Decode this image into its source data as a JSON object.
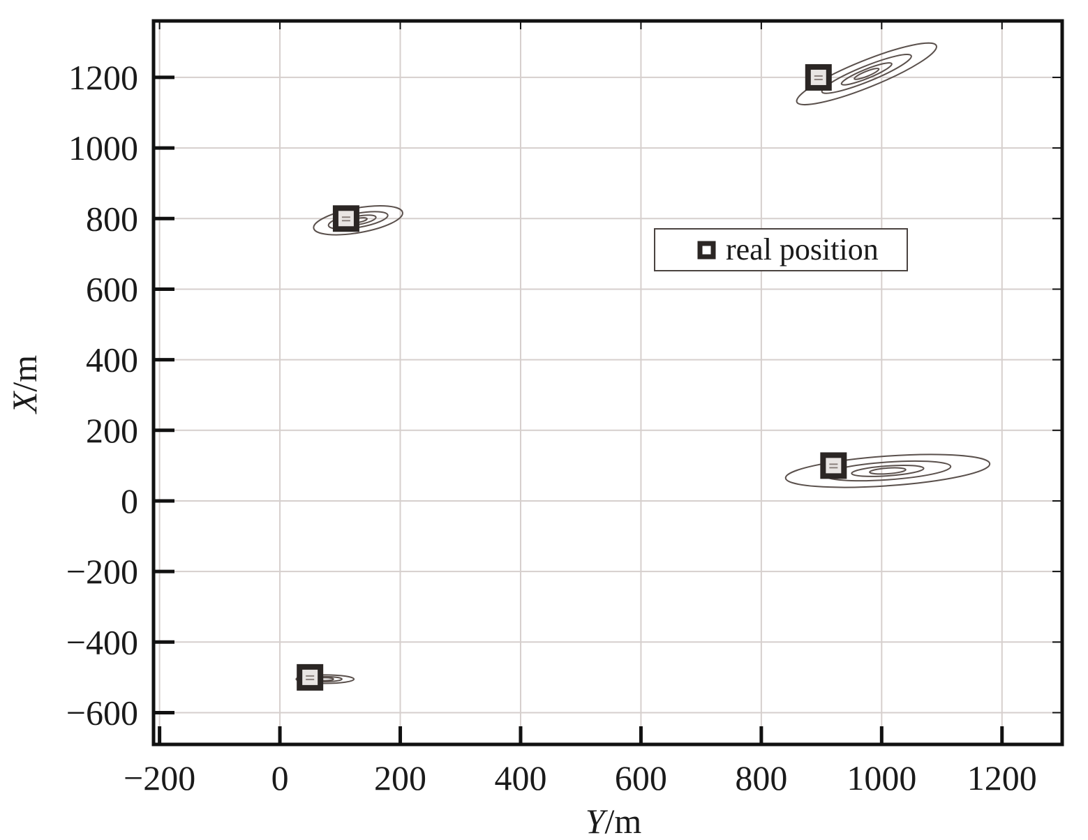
{
  "chart_data": {
    "type": "scatter",
    "xlabel": {
      "var": "Y",
      "unit": "/m"
    },
    "ylabel": {
      "var": "X",
      "unit": "/m"
    },
    "xlim": [
      -210,
      1300
    ],
    "ylim": [
      -690,
      1360
    ],
    "xticks": [
      -200,
      0,
      200,
      400,
      600,
      800,
      1000,
      1200
    ],
    "yticks": [
      -600,
      -400,
      -200,
      0,
      200,
      400,
      600,
      800,
      1000,
      1200
    ],
    "xtick_labels": [
      "−200",
      "0",
      "200",
      "400",
      "600",
      "800",
      "1000",
      "1200"
    ],
    "ytick_labels": [
      "−600",
      "−400",
      "−200",
      "0",
      "200",
      "400",
      "600",
      "800",
      "1000",
      "1200"
    ],
    "grid": true,
    "legend": {
      "position": "upper-right-center",
      "entries": [
        "real position"
      ]
    },
    "series": [
      {
        "name": "real position",
        "marker": "square",
        "x": [
          50,
          110,
          895,
          920
        ],
        "y": [
          -500,
          800,
          1200,
          100
        ]
      }
    ],
    "contours": [
      {
        "center": [
          75,
          -505
        ],
        "semi_axes": [
          [
            48,
            12
          ],
          [
            28,
            7
          ],
          [
            14,
            4
          ]
        ],
        "angle_deg": 0
      },
      {
        "center": [
          130,
          795
        ],
        "semi_axes": [
          [
            75,
            35
          ],
          [
            50,
            20
          ],
          [
            30,
            12
          ],
          [
            15,
            6
          ]
        ],
        "angle_deg": 10
      },
      {
        "center": [
          975,
          1210
        ],
        "semi_axes": [
          [
            125,
            38
          ],
          [
            80,
            22
          ],
          [
            45,
            13
          ],
          [
            22,
            7
          ]
        ],
        "angle_deg": 22
      },
      {
        "center": [
          1010,
          85
        ],
        "semi_axes": [
          [
            170,
            42
          ],
          [
            105,
            25
          ],
          [
            60,
            14
          ],
          [
            30,
            8
          ]
        ],
        "angle_deg": 4
      }
    ],
    "colors": {
      "marker": "#2b2624",
      "contour": "#5a504c",
      "grid": "#d6cfcd",
      "frame": "#111111"
    }
  }
}
